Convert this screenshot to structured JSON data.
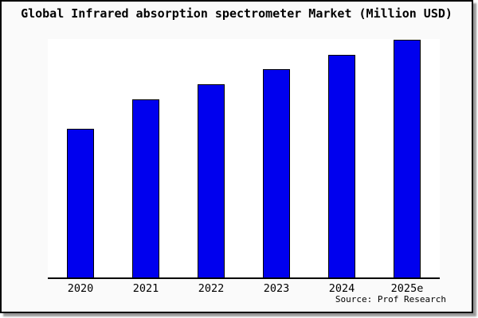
{
  "title": "Global Infrared absorption spectrometer Market (Million USD)",
  "source_note": "Source: Prof Research",
  "colors": {
    "background": "#fafafa",
    "plot_background": "#ffffff",
    "frame_border": "#000000",
    "frame_shadow": "#999999",
    "bar_fill": "#0000ee",
    "bar_border": "#000000",
    "axis": "#000000",
    "text": "#000000"
  },
  "chart_data": {
    "type": "bar",
    "title": "Global Infrared absorption spectrometer Market (Million USD)",
    "categories": [
      "2020",
      "2021",
      "2022",
      "2023",
      "2024",
      "2025e"
    ],
    "values": [
      62.4,
      74.7,
      81.0,
      87.2,
      93.3,
      99.6
    ],
    "values_note": "relative height, percent of plot height; no y-axis labels shown in image",
    "xlabel": "",
    "ylabel": "",
    "ylim": [
      0,
      100
    ],
    "y_axis_visible": false,
    "gridlines": false,
    "legend": false,
    "source_note": "Source: Prof Research"
  }
}
